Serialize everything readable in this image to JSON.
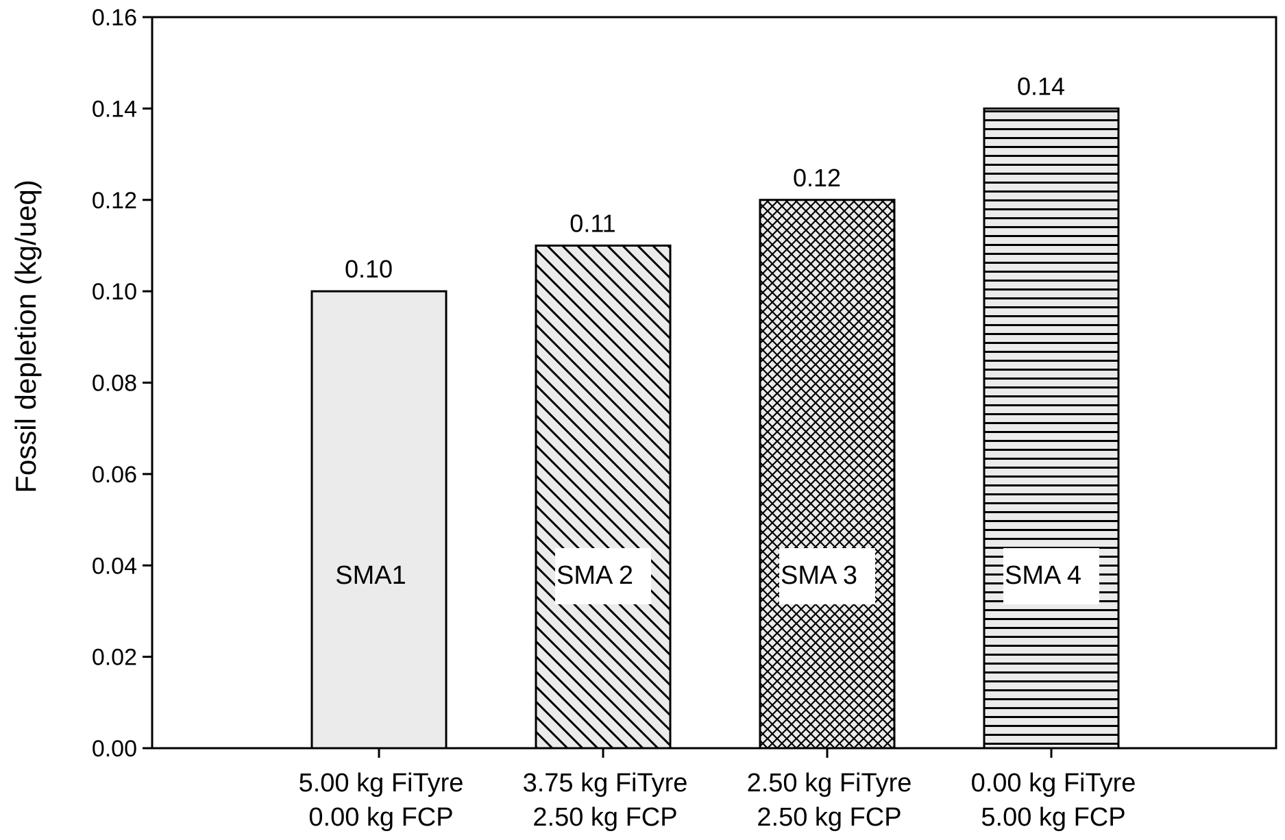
{
  "chart_data": {
    "type": "bar",
    "title": "",
    "xlabel": "",
    "ylabel": "Fossil depletion (kg/ueq)",
    "ylim": [
      0,
      0.16
    ],
    "yticks": [
      0.0,
      0.02,
      0.04,
      0.06,
      0.08,
      0.1,
      0.12,
      0.14,
      0.16
    ],
    "ytick_labels": [
      "0.00",
      "0.02",
      "0.04",
      "0.06",
      "0.08",
      "0.10",
      "0.12",
      "0.14",
      "0.16"
    ],
    "grid": false,
    "legend": "none",
    "values": [
      0.1,
      0.11,
      0.12,
      0.14
    ],
    "bars": [
      {
        "name": "SMA1",
        "value": 0.1,
        "value_label": "0.10",
        "category_lines": [
          "5.00 kg FiTyre",
          "0.00 kg FCP"
        ],
        "pattern": "solid",
        "fill": "#ebebeb"
      },
      {
        "name": "SMA 2",
        "value": 0.11,
        "value_label": "0.11",
        "category_lines": [
          "3.75 kg FiTyre",
          "2.50 kg FCP"
        ],
        "pattern": "diagonal",
        "fill": "#ebebeb"
      },
      {
        "name": "SMA 3",
        "value": 0.12,
        "value_label": "0.12",
        "category_lines": [
          "2.50 kg FiTyre",
          "2.50 kg FCP"
        ],
        "pattern": "crosshatch",
        "fill": "#ebebeb"
      },
      {
        "name": "SMA 4",
        "value": 0.14,
        "value_label": "0.14",
        "category_lines": [
          "0.00 kg FiTyre",
          "5.00 kg FCP"
        ],
        "pattern": "horizontal",
        "fill": "#ebebeb"
      }
    ]
  }
}
